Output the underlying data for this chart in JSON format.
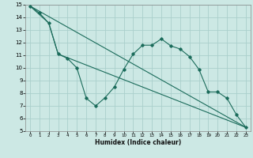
{
  "xlabel": "Humidex (Indice chaleur)",
  "background_color": "#cce8e4",
  "grid_color": "#aacfcc",
  "line_color": "#1a6b5a",
  "xlim": [
    -0.5,
    23.5
  ],
  "ylim": [
    5,
    15
  ],
  "xticks": [
    0,
    1,
    2,
    3,
    4,
    5,
    6,
    7,
    8,
    9,
    10,
    11,
    12,
    13,
    14,
    15,
    16,
    17,
    18,
    19,
    20,
    21,
    22,
    23
  ],
  "yticks": [
    5,
    6,
    7,
    8,
    9,
    10,
    11,
    12,
    13,
    14,
    15
  ],
  "line1_x": [
    0,
    1,
    2,
    3,
    4,
    5,
    6,
    7,
    8,
    9,
    10,
    11,
    12,
    13,
    14,
    15,
    16,
    17,
    18,
    19,
    20,
    21,
    22,
    23
  ],
  "line1_y": [
    14.9,
    14.35,
    13.55,
    11.1,
    10.75,
    10.0,
    7.6,
    7.0,
    7.65,
    8.5,
    9.9,
    11.1,
    11.8,
    11.8,
    12.3,
    11.75,
    11.5,
    10.9,
    9.9,
    8.1,
    8.1,
    7.6,
    6.3,
    5.3
  ],
  "line2_x": [
    0,
    2,
    3,
    23
  ],
  "line2_y": [
    14.9,
    13.55,
    11.1,
    5.3
  ],
  "line3_x": [
    0,
    23
  ],
  "line3_y": [
    14.9,
    5.3
  ],
  "xlabel_fontsize": 5.5,
  "xlabel_fontweight": "bold",
  "tick_fontsize_x": 4.0,
  "tick_fontsize_y": 5.0
}
